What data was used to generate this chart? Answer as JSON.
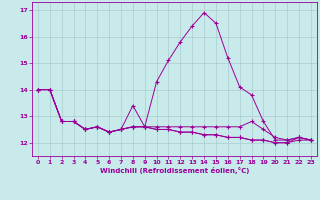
{
  "xlabel": "Windchill (Refroidissement éolien,°C)",
  "bg_color": "#c8eaea",
  "grid_color": "#aacccc",
  "line_color": "#990099",
  "xlim": [
    -0.5,
    23.5
  ],
  "ylim": [
    11.5,
    17.3
  ],
  "yticks": [
    12,
    13,
    14,
    15,
    16,
    17
  ],
  "xticks": [
    0,
    1,
    2,
    3,
    4,
    5,
    6,
    7,
    8,
    9,
    10,
    11,
    12,
    13,
    14,
    15,
    16,
    17,
    18,
    19,
    20,
    21,
    22,
    23
  ],
  "series": [
    [
      14.0,
      14.0,
      12.8,
      12.8,
      12.5,
      12.6,
      12.4,
      12.5,
      13.4,
      12.6,
      14.3,
      15.1,
      15.8,
      16.4,
      16.9,
      16.5,
      15.2,
      14.1,
      13.8,
      12.8,
      12.1,
      12.1,
      12.2,
      12.1
    ],
    [
      14.0,
      14.0,
      12.8,
      12.8,
      12.5,
      12.6,
      12.4,
      12.5,
      12.6,
      12.6,
      12.6,
      12.6,
      12.6,
      12.6,
      12.6,
      12.6,
      12.6,
      12.6,
      12.8,
      12.5,
      12.2,
      12.1,
      12.2,
      12.1
    ],
    [
      14.0,
      14.0,
      12.8,
      12.8,
      12.5,
      12.6,
      12.4,
      12.5,
      12.6,
      12.6,
      12.5,
      12.5,
      12.4,
      12.4,
      12.3,
      12.3,
      12.2,
      12.2,
      12.1,
      12.1,
      12.0,
      12.0,
      12.1,
      12.1
    ],
    [
      14.0,
      14.0,
      12.8,
      12.8,
      12.5,
      12.6,
      12.4,
      12.5,
      12.6,
      12.6,
      12.5,
      12.5,
      12.4,
      12.4,
      12.3,
      12.3,
      12.2,
      12.2,
      12.1,
      12.1,
      12.0,
      12.0,
      12.2,
      12.1
    ]
  ],
  "xlabel_fontsize": 5.0,
  "tick_fontsize": 4.5
}
